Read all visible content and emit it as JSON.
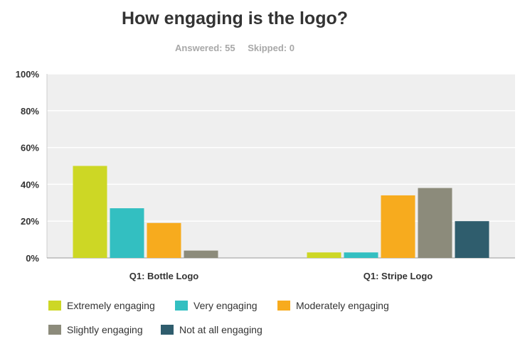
{
  "chart_data": {
    "type": "bar",
    "title": "How engaging is the logo?",
    "stats": {
      "answered": "Answered: 55",
      "skipped": "Skipped: 0"
    },
    "categories": [
      "Q1: Bottle Logo",
      "Q1: Stripe Logo"
    ],
    "series": [
      {
        "name": "Extremely engaging",
        "color": "#cdd725",
        "values": [
          50,
          3
        ]
      },
      {
        "name": "Very engaging",
        "color": "#33bfc1",
        "values": [
          27,
          3
        ]
      },
      {
        "name": "Moderately engaging",
        "color": "#f7ab1e",
        "values": [
          19,
          34
        ]
      },
      {
        "name": "Slightly engaging",
        "color": "#8c8b7b",
        "values": [
          4,
          38
        ]
      },
      {
        "name": "Not at all engaging",
        "color": "#2f5d6d",
        "values": [
          0,
          20
        ]
      }
    ],
    "ylim": [
      0,
      100
    ],
    "yticks": [
      "0%",
      "20%",
      "40%",
      "60%",
      "80%",
      "100%"
    ],
    "grid": true,
    "legend_position": "bottom"
  }
}
